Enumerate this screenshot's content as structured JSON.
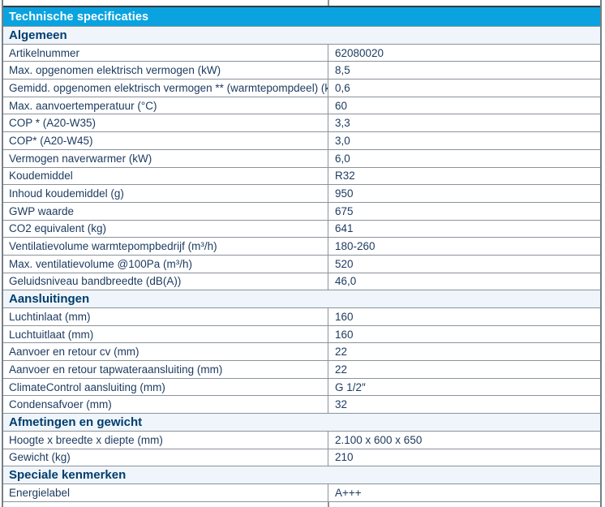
{
  "title_bar": {
    "title": "Technische specificaties"
  },
  "colors": {
    "accent_cyan": "#0aa3df",
    "section_bg": "#eff5fa",
    "section_text": "#003d6e",
    "row_text": "#1b3a5f",
    "border_inner": "#8a939b",
    "border_outer": "#767f87",
    "border_dark": "#343b41",
    "title_text": "#ffffff"
  },
  "table": {
    "sections": [
      {
        "title": "Algemeen",
        "rows": [
          {
            "label": "Artikelnummer",
            "value": "62080020"
          },
          {
            "label": "Max. opgenomen elektrisch vermogen (kW)",
            "value": "8,5"
          },
          {
            "label": "Gemidd. opgenomen elektrisch vermogen ** (warmtepompdeel) (kW)",
            "value": "0,6"
          },
          {
            "label": "Max. aanvoertemperatuur (°C)",
            "value": "60"
          },
          {
            "label": "COP * (A20-W35)",
            "value": "3,3"
          },
          {
            "label": "COP* (A20-W45)",
            "value": "3,0"
          },
          {
            "label": "Vermogen naverwarmer (kW)",
            "value": "6,0"
          },
          {
            "label": "Koudemiddel",
            "value": "R32"
          },
          {
            "label": "Inhoud koudemiddel (g)",
            "value": "950"
          },
          {
            "label": "GWP waarde",
            "value": "675"
          },
          {
            "label": "CO2 equivalent (kg)",
            "value": "641"
          },
          {
            "label": "Ventilatievolume warmtepompbedrijf (m³/h)",
            "value": "180-260"
          },
          {
            "label": "Max. ventilatievolume @100Pa (m³/h)",
            "value": "520"
          },
          {
            "label": "Geluidsniveau bandbreedte (dB(A))",
            "value": "46,0"
          }
        ]
      },
      {
        "title": "Aansluitingen",
        "rows": [
          {
            "label": "Luchtinlaat (mm)",
            "value": "160"
          },
          {
            "label": "Luchtuitlaat (mm)",
            "value": "160"
          },
          {
            "label": "Aanvoer en retour cv (mm)",
            "value": "22"
          },
          {
            "label": "Aanvoer en retour tapwateraansluiting (mm)",
            "value": "22"
          },
          {
            "label": "ClimateControl aansluiting (mm)",
            "value": "G 1/2″"
          },
          {
            "label": "Condensafvoer (mm)",
            "value": "32"
          }
        ]
      },
      {
        "title": "Afmetingen en gewicht",
        "rows": [
          {
            "label": "Hoogte x breedte x diepte (mm)",
            "value": "2.100 x 600 x 650"
          },
          {
            "label": "Gewicht (kg)",
            "value": "210"
          }
        ]
      },
      {
        "title": "Speciale kenmerken",
        "rows": [
          {
            "label": "Energielabel",
            "value": "A+++"
          }
        ]
      }
    ]
  }
}
